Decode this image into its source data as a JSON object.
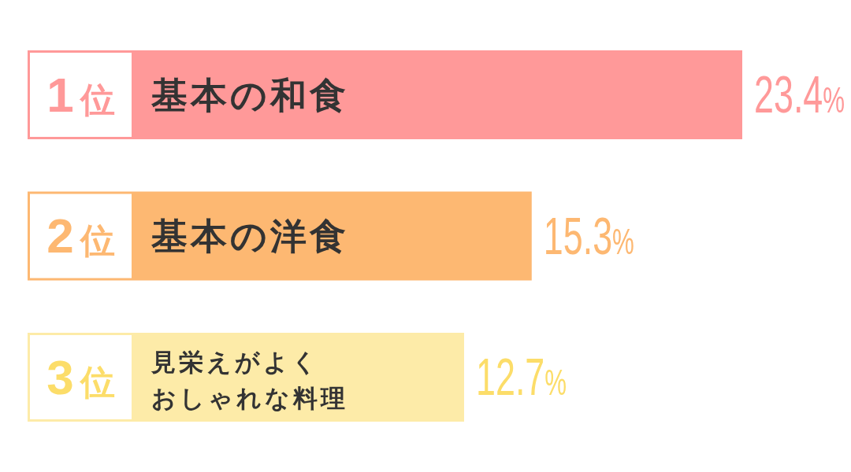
{
  "chart_data": {
    "type": "bar",
    "orientation": "horizontal",
    "categories": [
      "基本の和食",
      "基本の洋食",
      "見栄えがよくおしゃれな料理"
    ],
    "values": [
      23.4,
      15.3,
      12.7
    ],
    "colors": [
      "#ff9999",
      "#fdb872",
      "#fdeba8"
    ],
    "value_labels": [
      "23.4%",
      "15.3%",
      "12.7%"
    ],
    "annotations": [
      "1位",
      "2位",
      "3位"
    ]
  }
}
